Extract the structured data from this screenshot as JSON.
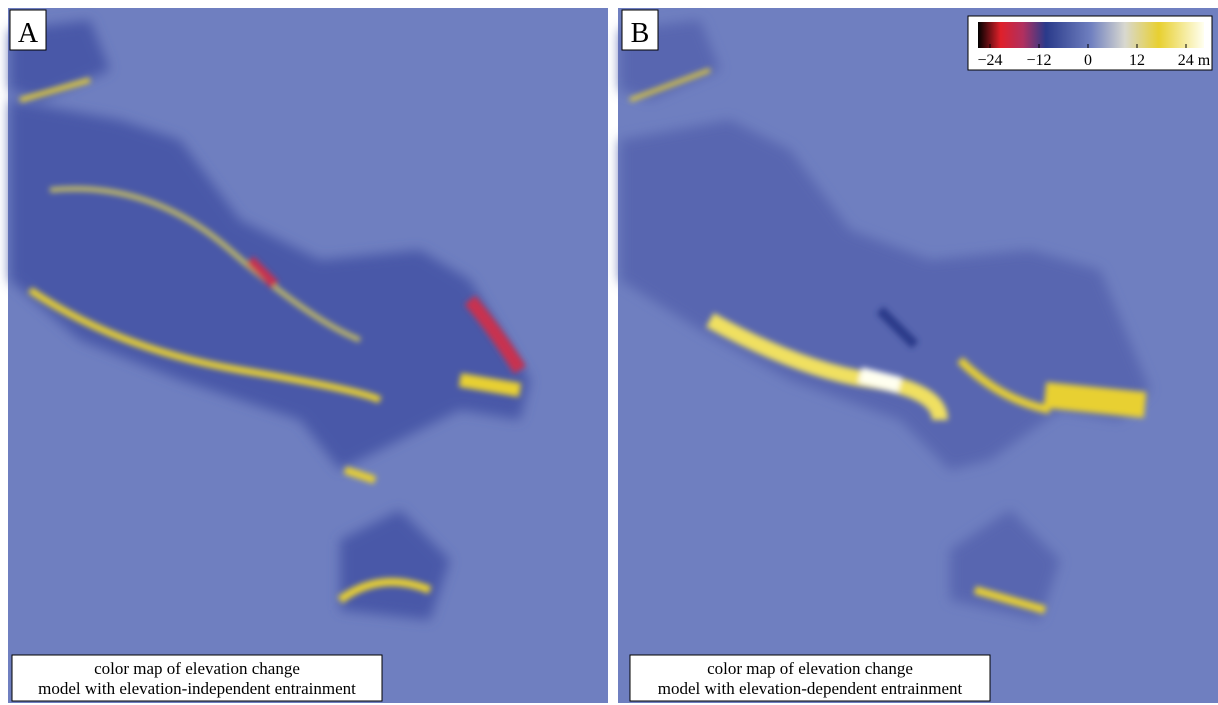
{
  "panels": [
    {
      "label": "A",
      "caption": [
        "color map of elevation change",
        "model with elevation-independent entrainment"
      ]
    },
    {
      "label": "B",
      "caption": [
        "color map of elevation change",
        "model with elevation-dependent entrainment"
      ]
    }
  ],
  "colorbar": {
    "ticks": [
      {
        "value": -24,
        "label": "−24"
      },
      {
        "value": -12,
        "label": "−12"
      },
      0,
      12,
      {
        "value": 24,
        "label": "24 m"
      }
    ]
  }
}
